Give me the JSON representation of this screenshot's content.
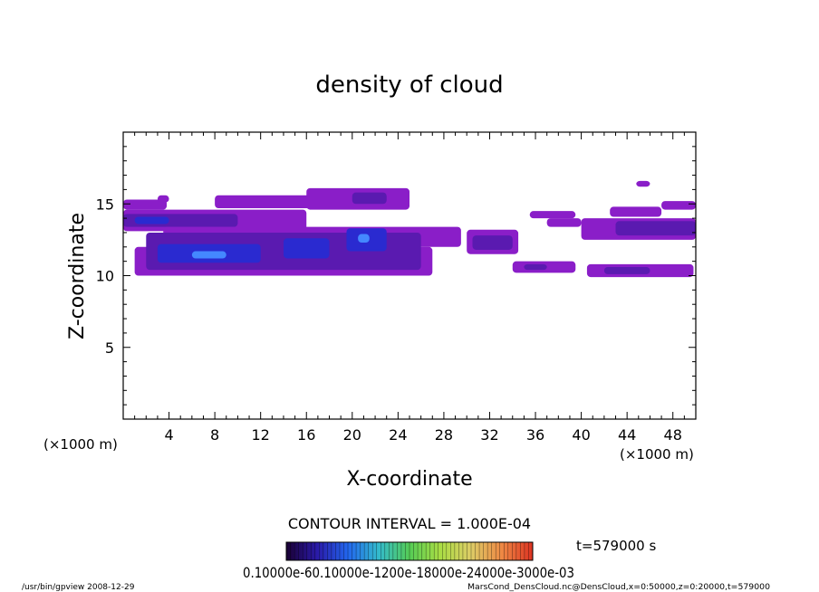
{
  "chart_data": {
    "type": "heatmap",
    "title": "density of cloud",
    "xlabel": "X-coordinate",
    "ylabel": "Z-coordinate",
    "xunit_left": "(×1000 m)",
    "xunit_right": "(×1000 m)",
    "xlim": [
      0,
      50
    ],
    "ylim": [
      0,
      20
    ],
    "x_ticks": [
      4,
      8,
      12,
      16,
      20,
      24,
      28,
      32,
      36,
      40,
      44,
      48
    ],
    "y_ticks": [
      5,
      10,
      15
    ],
    "contour_interval": "CONTOUR INTERVAL = 1.000E-04",
    "time_label": "t=579000 s",
    "colorbar_labels": "0.10000e-60.10000e-1200e-18000e-24000e-3000e-03",
    "colorbar_stops": [
      "#1a0033",
      "#2a1aa8",
      "#2266ee",
      "#33bbcc",
      "#55cc55",
      "#aadd44",
      "#ddcc66",
      "#ee8844",
      "#dd3322"
    ],
    "footer_left": "/usr/bin/gpview   2008-12-29",
    "footer_right": "MarsCond_DensCloud.nc@DensCloud,x=0:50000,z=0:20000,t=579000",
    "regions": [
      {
        "x1": 0.0,
        "x2": 3.8,
        "z1": 14.6,
        "z2": 15.3,
        "level": 1
      },
      {
        "x1": 3.0,
        "x2": 4.0,
        "z1": 15.1,
        "z2": 15.6,
        "level": 1
      },
      {
        "x1": 0.0,
        "x2": 16.0,
        "z1": 13.1,
        "z2": 14.6,
        "level": 1
      },
      {
        "x1": 0.0,
        "x2": 10.0,
        "z1": 13.4,
        "z2": 14.3,
        "level": 2
      },
      {
        "x1": 1.0,
        "x2": 4.0,
        "z1": 13.6,
        "z2": 14.1,
        "level": 3
      },
      {
        "x1": 8.0,
        "x2": 16.5,
        "z1": 14.7,
        "z2": 15.6,
        "level": 1
      },
      {
        "x1": 16.0,
        "x2": 25.0,
        "z1": 14.6,
        "z2": 16.1,
        "level": 1
      },
      {
        "x1": 20.0,
        "x2": 23.0,
        "z1": 15.0,
        "z2": 15.8,
        "level": 2
      },
      {
        "x1": 3.5,
        "x2": 29.5,
        "z1": 12.0,
        "z2": 13.4,
        "level": 1
      },
      {
        "x1": 1.0,
        "x2": 27.0,
        "z1": 10.0,
        "z2": 12.0,
        "level": 1
      },
      {
        "x1": 2.0,
        "x2": 26.0,
        "z1": 10.4,
        "z2": 13.0,
        "level": 2
      },
      {
        "x1": 3.0,
        "x2": 12.0,
        "z1": 10.9,
        "z2": 12.2,
        "level": 3
      },
      {
        "x1": 14.0,
        "x2": 18.0,
        "z1": 11.2,
        "z2": 12.6,
        "level": 3
      },
      {
        "x1": 19.5,
        "x2": 23.0,
        "z1": 11.7,
        "z2": 13.3,
        "level": 3
      },
      {
        "x1": 6.0,
        "x2": 9.0,
        "z1": 11.2,
        "z2": 11.7,
        "level": 4
      },
      {
        "x1": 20.5,
        "x2": 21.5,
        "z1": 12.3,
        "z2": 12.9,
        "level": 4
      },
      {
        "x1": 30.0,
        "x2": 34.5,
        "z1": 11.5,
        "z2": 13.2,
        "level": 1
      },
      {
        "x1": 30.5,
        "x2": 34.0,
        "z1": 11.8,
        "z2": 12.8,
        "level": 2
      },
      {
        "x1": 34.0,
        "x2": 39.5,
        "z1": 10.2,
        "z2": 11.0,
        "level": 1
      },
      {
        "x1": 35.0,
        "x2": 37.0,
        "z1": 10.4,
        "z2": 10.8,
        "level": 2
      },
      {
        "x1": 40.5,
        "x2": 49.8,
        "z1": 9.9,
        "z2": 10.8,
        "level": 1
      },
      {
        "x1": 42.0,
        "x2": 46.0,
        "z1": 10.1,
        "z2": 10.6,
        "level": 2
      },
      {
        "x1": 40.0,
        "x2": 50.0,
        "z1": 12.5,
        "z2": 14.0,
        "level": 1
      },
      {
        "x1": 43.0,
        "x2": 50.0,
        "z1": 12.8,
        "z2": 13.8,
        "level": 2
      },
      {
        "x1": 42.5,
        "x2": 47.0,
        "z1": 14.1,
        "z2": 14.8,
        "level": 1
      },
      {
        "x1": 47.0,
        "x2": 50.0,
        "z1": 14.6,
        "z2": 15.2,
        "level": 1
      },
      {
        "x1": 44.8,
        "x2": 46.0,
        "z1": 16.2,
        "z2": 16.6,
        "level": 1
      },
      {
        "x1": 35.5,
        "x2": 39.5,
        "z1": 14.0,
        "z2": 14.5,
        "level": 1
      },
      {
        "x1": 37.0,
        "x2": 40.0,
        "z1": 13.4,
        "z2": 14.0,
        "level": 1
      }
    ],
    "level_colors": {
      "1": "#8a1ec8",
      "2": "#5a1ab0",
      "3": "#2a2ad0",
      "4": "#4488ff"
    },
    "grid": false,
    "legend": "bottom"
  }
}
